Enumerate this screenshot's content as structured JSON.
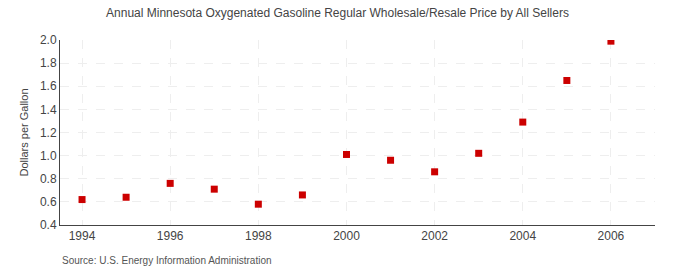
{
  "chart_data": {
    "type": "scatter",
    "title": "Annual Minnesota Oxygenated Gasoline Regular Wholesale/Resale Price by All Sellers",
    "ylabel": "Dollars per Gallon",
    "annotations": [
      "Source: U.S. Energy Information Administration"
    ],
    "x": [
      1994,
      1995,
      1996,
      1997,
      1998,
      1999,
      2000,
      2001,
      2002,
      2003,
      2004,
      2005,
      2006
    ],
    "values": [
      0.62,
      0.64,
      0.76,
      0.71,
      0.58,
      0.66,
      1.01,
      0.96,
      0.86,
      1.02,
      1.29,
      1.65,
      1.99
    ],
    "xlim": [
      1993.5,
      2007.0
    ],
    "ylim": [
      0.4,
      2.0
    ],
    "xticks": [
      1994,
      1996,
      1998,
      2000,
      2002,
      2004,
      2006
    ],
    "yticks": [
      0.4,
      0.6,
      0.8,
      {
        "value": 1.0,
        "label": "1.0"
      },
      1.2,
      1.4,
      1.6,
      1.8,
      {
        "value": 2.0,
        "label": "2.0"
      }
    ],
    "color": "#cc0000",
    "marker": "square",
    "grid": true
  }
}
